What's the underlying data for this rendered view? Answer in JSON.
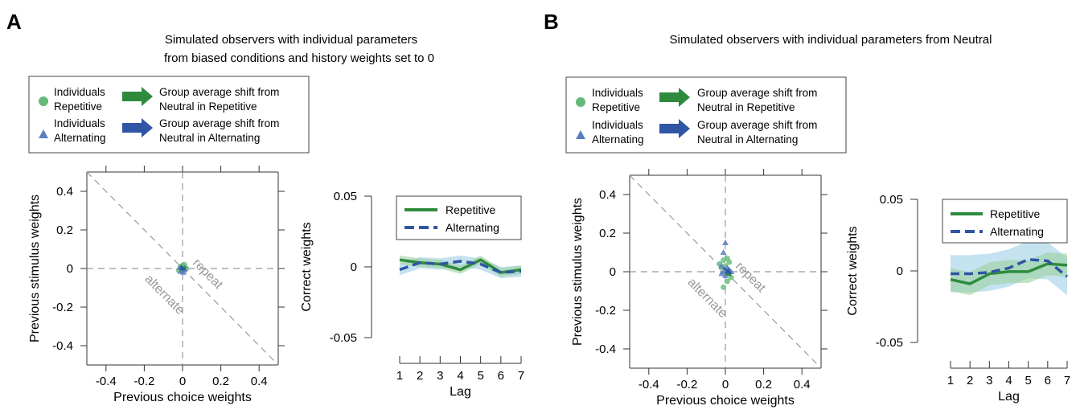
{
  "panels": [
    {
      "letter": "A",
      "title_lines": [
        "Simulated observers with individual parameters",
        "from biased conditions and history weights set to 0"
      ],
      "legend": {
        "ind_rep": [
          "Individuals",
          "Repetitive"
        ],
        "ind_alt": [
          "Individuals",
          "Alternating"
        ],
        "shift_rep": [
          "Group average shift from",
          "Neutral in Repetitive"
        ],
        "shift_alt": [
          "Group average shift from",
          "Neutral in Alternating"
        ]
      }
    },
    {
      "letter": "B",
      "title_lines": [
        "Simulated observers with individual parameters from Neutral"
      ],
      "legend": {
        "ind_rep": [
          "Individuals",
          "Repetitive"
        ],
        "ind_alt": [
          "Individuals",
          "Alternating"
        ],
        "shift_rep": [
          "Group average shift from",
          "Neutral in Repetitive"
        ],
        "shift_alt": [
          "Group average shift from",
          "Neutral in Alternating"
        ]
      }
    }
  ],
  "colors": {
    "repetitive": "#2e8b3e",
    "alternating": "#2f55a4",
    "rep_fill": "#9bd29c",
    "alt_fill": "#9ccfe6",
    "rep_marker": "#66b97a",
    "alt_marker": "#5b7ec2",
    "guide": "#999999",
    "guide_text": "#999999"
  },
  "chart_data": [
    {
      "type": "scatter",
      "panel": "A",
      "xlabel": "Previous choice weights",
      "ylabel": "Previous stimulus weights",
      "xlim": [
        -0.5,
        0.5
      ],
      "ylim": [
        -0.5,
        0.5
      ],
      "xticks": [
        "-0.4",
        "-0.2",
        "0",
        "0.2",
        "0.4"
      ],
      "yticks": [
        "0.4",
        "0.2",
        "0",
        "-0.2",
        "-0.4"
      ],
      "annotations": [
        "repeat",
        "alternate"
      ],
      "series": [
        {
          "name": "Individuals Repetitive",
          "points": [
            [
              -0.01,
              0.01
            ],
            [
              0.0,
              0.0
            ],
            [
              0.01,
              0.02
            ],
            [
              -0.02,
              -0.01
            ],
            [
              0.0,
              0.015
            ],
            [
              0.02,
              0.0
            ]
          ]
        },
        {
          "name": "Individuals Alternating",
          "points": [
            [
              0.0,
              -0.01
            ],
            [
              0.01,
              0.0
            ],
            [
              -0.01,
              -0.015
            ],
            [
              0.005,
              -0.02
            ],
            [
              -0.015,
              0.005
            ],
            [
              0.01,
              -0.005
            ]
          ]
        }
      ],
      "arrows": [
        {
          "name": "Group average shift from Neutral in Repetitive",
          "from": [
            0.0,
            0.0
          ],
          "to": [
            0.02,
            0.01
          ]
        },
        {
          "name": "Group average shift from Neutral in Alternating",
          "from": [
            0.0,
            0.0
          ],
          "to": [
            0.015,
            -0.005
          ]
        }
      ]
    },
    {
      "type": "line",
      "panel": "A",
      "xlabel": "Lag",
      "ylabel": "Correct weights",
      "x": [
        1,
        2,
        3,
        4,
        5,
        6,
        7
      ],
      "xlim": [
        1,
        7
      ],
      "ylim": [
        -0.05,
        0.05
      ],
      "yticks": [
        "0.05",
        "0",
        "-0.05"
      ],
      "series": [
        {
          "name": "Repetitive",
          "values": [
            0.005,
            0.003,
            0.002,
            -0.002,
            0.005,
            -0.004,
            -0.002
          ],
          "band": 0.003
        },
        {
          "name": "Alternating",
          "values": [
            -0.002,
            0.003,
            0.002,
            0.004,
            0.002,
            -0.004,
            -0.003
          ],
          "band": 0.004
        }
      ]
    },
    {
      "type": "scatter",
      "panel": "B",
      "xlabel": "Previous choice weights",
      "ylabel": "Previous stimulus weights",
      "xlim": [
        -0.5,
        0.5
      ],
      "ylim": [
        -0.5,
        0.5
      ],
      "xticks": [
        "-0.4",
        "-0.2",
        "0",
        "0.2",
        "0.4"
      ],
      "yticks": [
        "0.4",
        "0.2",
        "0",
        "-0.2",
        "-0.4"
      ],
      "annotations": [
        "repeat",
        "alternate"
      ],
      "series": [
        {
          "name": "Individuals Repetitive",
          "points": [
            [
              -0.01,
              0.06
            ],
            [
              0.01,
              0.07
            ],
            [
              0.02,
              0.05
            ],
            [
              -0.02,
              0.02
            ],
            [
              0.03,
              -0.03
            ],
            [
              0.01,
              -0.05
            ],
            [
              -0.01,
              -0.08
            ],
            [
              0.0,
              0.03
            ],
            [
              0.02,
              0.0
            ],
            [
              -0.03,
              0.04
            ]
          ]
        },
        {
          "name": "Individuals Alternating",
          "points": [
            [
              0.0,
              0.15
            ],
            [
              -0.01,
              0.1
            ],
            [
              0.01,
              0.02
            ],
            [
              -0.02,
              -0.01
            ],
            [
              0.0,
              -0.02
            ],
            [
              0.02,
              0.01
            ],
            [
              -0.01,
              0.0
            ],
            [
              0.03,
              0.0
            ],
            [
              -0.02,
              0.03
            ],
            [
              0.01,
              -0.01
            ]
          ]
        }
      ],
      "arrows": [
        {
          "name": "Group average shift from Neutral in Repetitive",
          "from": [
            0.0,
            0.0
          ],
          "to": [
            0.03,
            -0.02
          ]
        },
        {
          "name": "Group average shift from Neutral in Alternating",
          "from": [
            -0.01,
            0.02
          ],
          "to": [
            0.03,
            -0.01
          ]
        }
      ]
    },
    {
      "type": "line",
      "panel": "B",
      "xlabel": "Lag",
      "ylabel": "Correct weights",
      "x": [
        1,
        2,
        3,
        4,
        5,
        6,
        7
      ],
      "xlim": [
        1,
        7
      ],
      "ylim": [
        -0.05,
        0.05
      ],
      "yticks": [
        "0.05",
        "0",
        "-0.05"
      ],
      "series": [
        {
          "name": "Repetitive",
          "values": [
            -0.006,
            -0.009,
            -0.002,
            -0.0005,
            -0.0005,
            0.005,
            0.004
          ],
          "band": 0.008
        },
        {
          "name": "Alternating",
          "values": [
            -0.002,
            -0.002,
            -0.001,
            0.002,
            0.008,
            0.007,
            -0.004
          ],
          "band": 0.013
        }
      ]
    }
  ]
}
